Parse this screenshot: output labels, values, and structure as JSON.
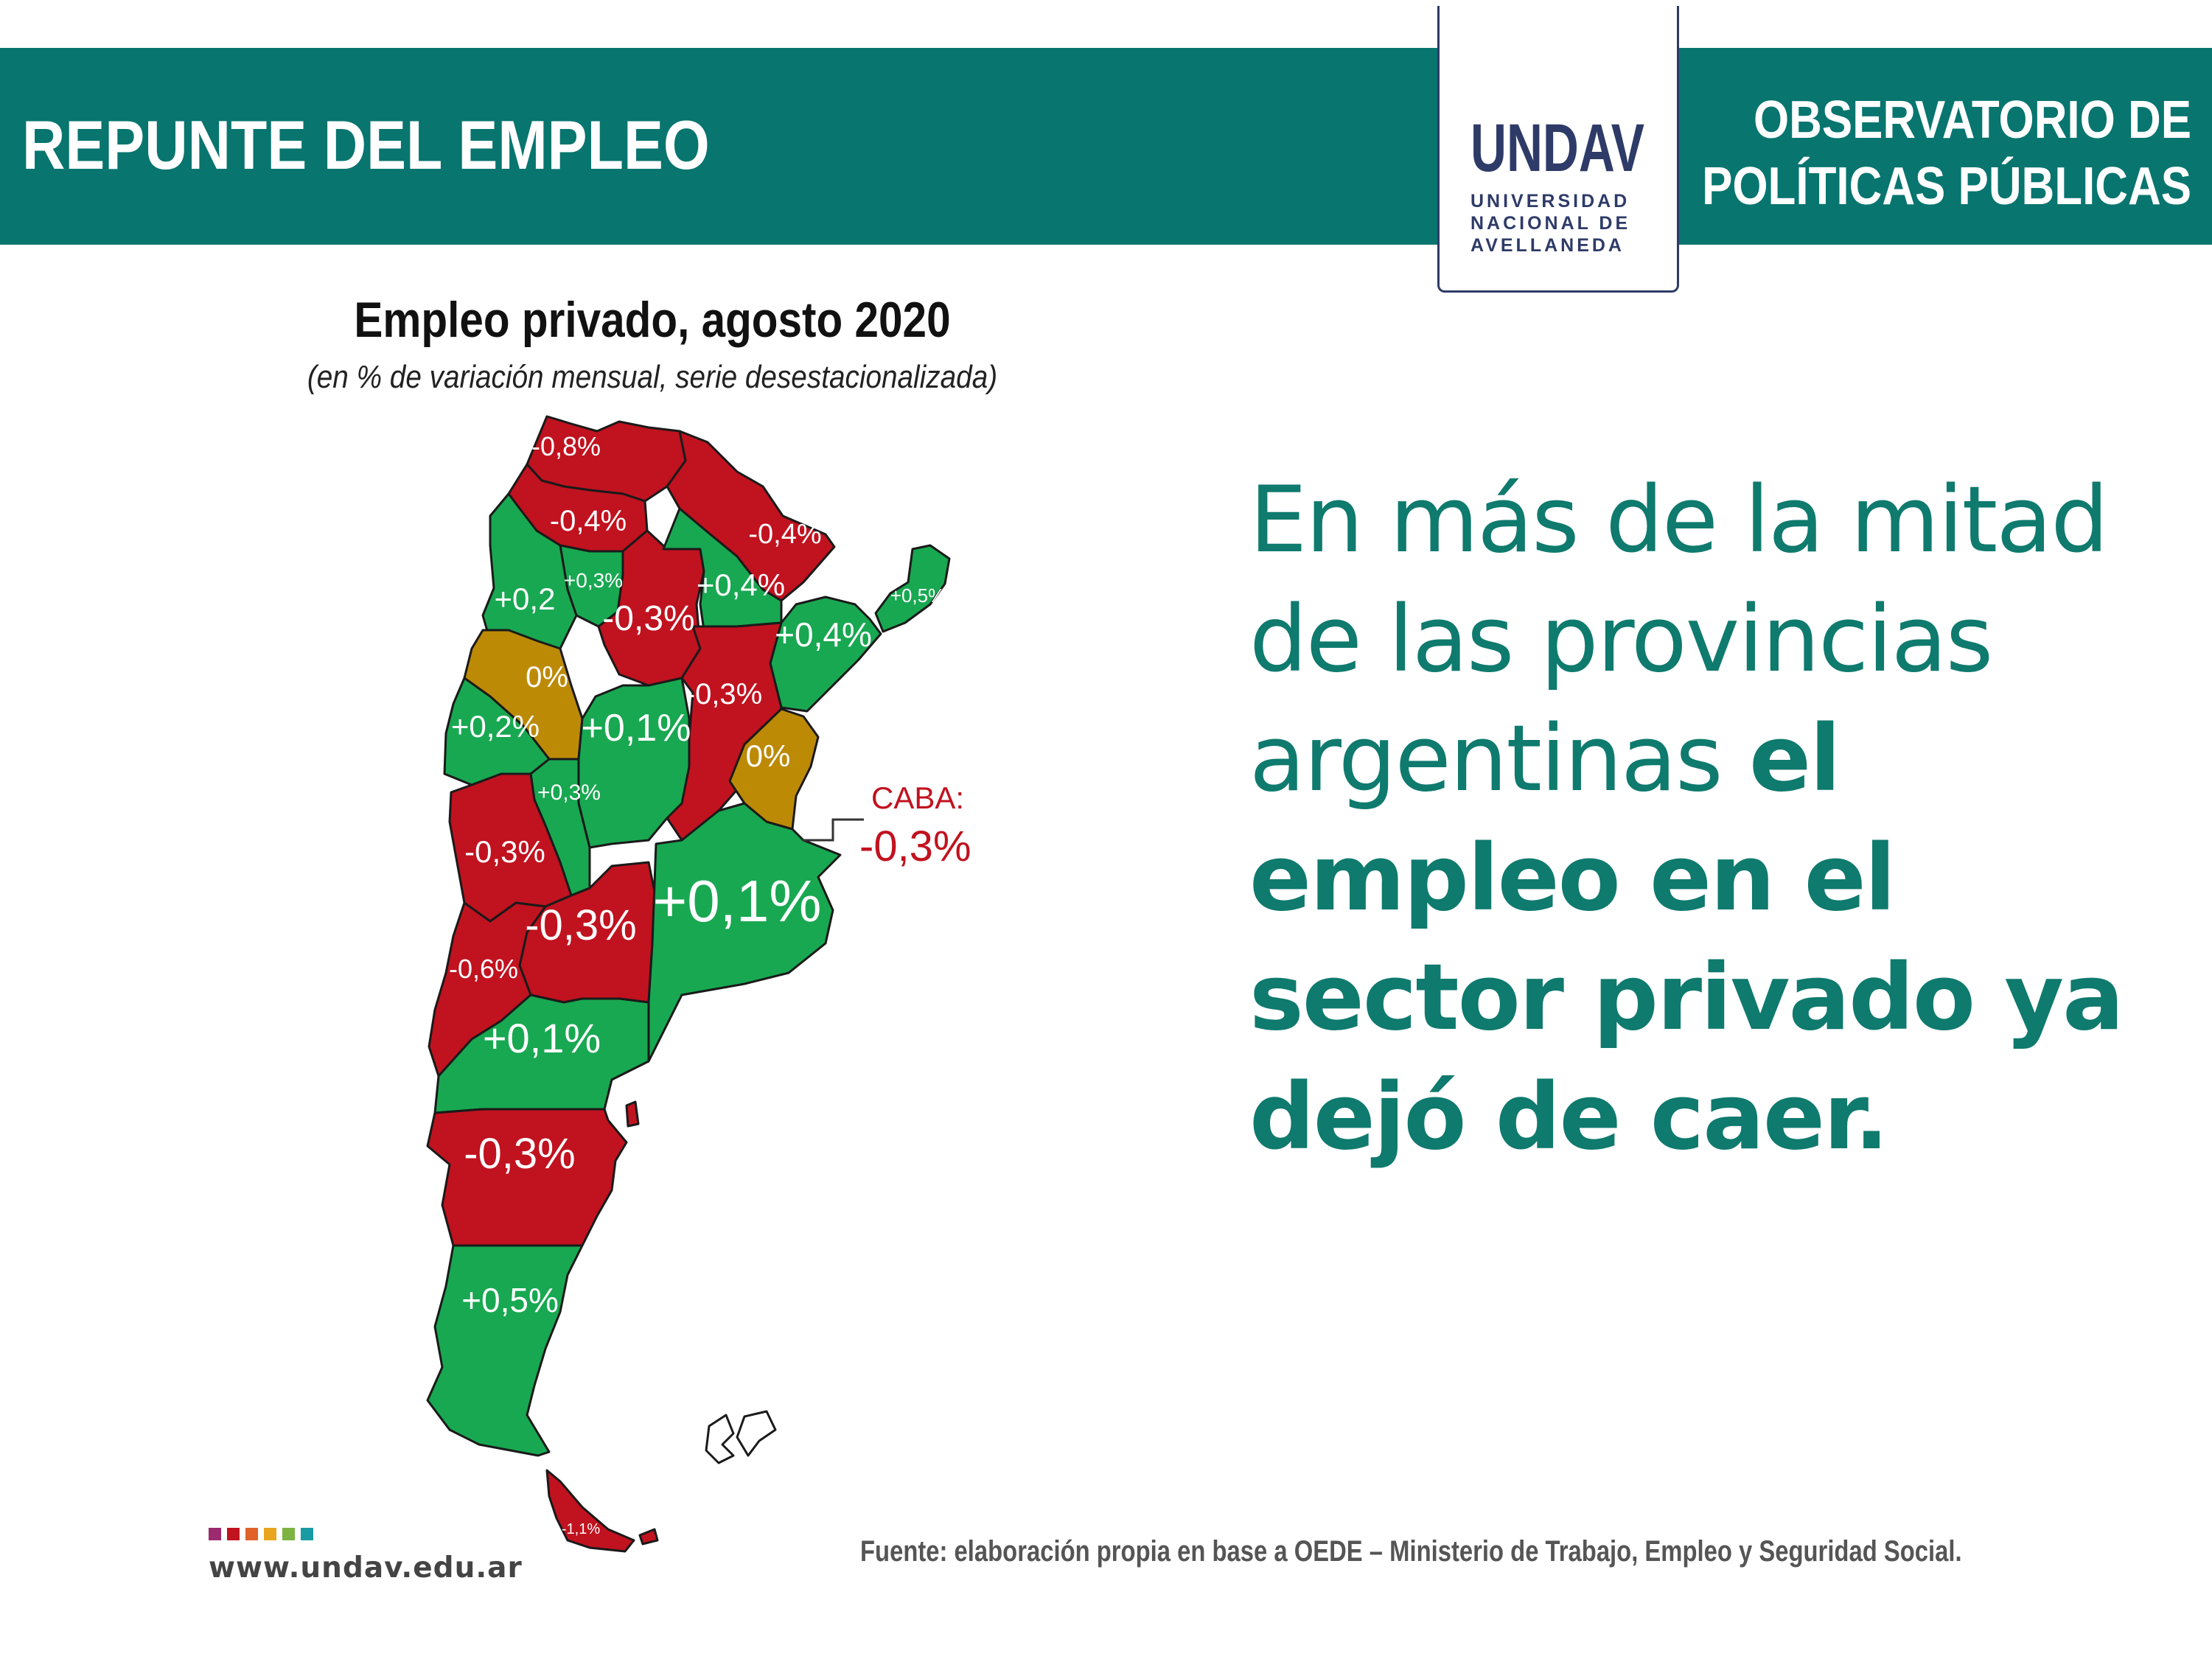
{
  "header": {
    "title": "REPUNTE DEL EMPLEO",
    "right_line1": "OBSERVATORIO DE",
    "right_line2": "POLÍTICAS PÚBLICAS",
    "logo_mark": "UNDAV",
    "logo_line1": "UNIVERSIDAD",
    "logo_line2": "NACIONAL DE",
    "logo_line3": "AVELLANEDA",
    "band_color": "#08756f",
    "logo_color": "#2e3b68"
  },
  "map": {
    "title": "Empleo privado, agosto 2020",
    "subtitle": "(en % de variación mensual, serie desestacionalizada)",
    "colors": {
      "negative": "#c1121f",
      "positive": "#18a851",
      "zero": "#bd8a06"
    },
    "provinces": [
      {
        "label": "-0,8%",
        "value": -0.8
      },
      {
        "label": "-0,4%",
        "value": -0.4
      },
      {
        "label": "-0,4%",
        "value": -0.4
      },
      {
        "label": "+0,3%",
        "value": 0.3
      },
      {
        "label": "+0,2",
        "value": 0.2
      },
      {
        "label": "-0,3%",
        "value": -0.3
      },
      {
        "label": "+0,4%",
        "value": 0.4
      },
      {
        "label": "+0,5%",
        "value": 0.5
      },
      {
        "label": "+0,4%",
        "value": 0.4
      },
      {
        "label": "0%",
        "value": 0
      },
      {
        "label": "-0,3%",
        "value": -0.3
      },
      {
        "label": "+0,2%",
        "value": 0.2
      },
      {
        "label": "+0,1%",
        "value": 0.1
      },
      {
        "label": "0%",
        "value": 0
      },
      {
        "label": "+0,3%",
        "value": 0.3
      },
      {
        "label": "-0,3%",
        "value": -0.3
      },
      {
        "label": "-0,3%",
        "value": -0.3
      },
      {
        "label": "+0,1%",
        "value": 0.1
      },
      {
        "label": "-0,6%",
        "value": -0.6
      },
      {
        "label": "+0,1%",
        "value": 0.1
      },
      {
        "label": "-0,3%",
        "value": -0.3
      },
      {
        "label": "+0,5%",
        "value": 0.5
      },
      {
        "label": "-1,1%",
        "value": -1.1
      }
    ],
    "caba": {
      "name": "CABA:",
      "label": "-0,3%",
      "value": -0.3
    }
  },
  "message": {
    "part1": "En más de la mitad de las provincias argentinas ",
    "bold": "el empleo en el sector privado ya dejó de caer."
  },
  "footer": {
    "website": "www.undav.edu.ar",
    "source": "Fuente: elaboración propia en base a OEDE – Ministerio de Trabajo, Empleo y Seguridad Social.",
    "dot_colors": [
      "#9c2a6e",
      "#c1121f",
      "#e0612a",
      "#e9a51e",
      "#7cb342",
      "#1a9ba4"
    ]
  }
}
